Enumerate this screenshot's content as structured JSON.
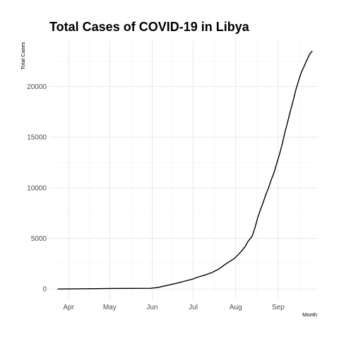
{
  "chart_data": {
    "type": "line",
    "title": "Total Cases of COVID-19 in Libya",
    "xlabel": "Month",
    "ylabel": "Total Cases",
    "x_tick_labels": [
      "Apr",
      "May",
      "Jun",
      "Jul",
      "Aug",
      "Sep"
    ],
    "x_tick_dates": [
      "2020-04-01",
      "2020-05-01",
      "2020-06-01",
      "2020-07-01",
      "2020-08-01",
      "2020-09-01"
    ],
    "y_ticks": [
      0,
      5000,
      10000,
      15000,
      20000
    ],
    "xlim": [
      "2020-03-18",
      "2020-09-30"
    ],
    "ylim": [
      -1100,
      24500
    ],
    "grid": true,
    "x": [
      "2020-03-24",
      "2020-04-15",
      "2020-05-01",
      "2020-05-15",
      "2020-05-31",
      "2020-06-05",
      "2020-06-10",
      "2020-06-15",
      "2020-06-20",
      "2020-06-25",
      "2020-07-01",
      "2020-07-05",
      "2020-07-10",
      "2020-07-15",
      "2020-07-20",
      "2020-07-25",
      "2020-07-31",
      "2020-08-05",
      "2020-08-08",
      "2020-08-10",
      "2020-08-13",
      "2020-08-15",
      "2020-08-17",
      "2020-08-19",
      "2020-08-21",
      "2020-08-23",
      "2020-08-25",
      "2020-08-27",
      "2020-08-29",
      "2020-08-31",
      "2020-09-02",
      "2020-09-04",
      "2020-09-06",
      "2020-09-08",
      "2020-09-10",
      "2020-09-12",
      "2020-09-14",
      "2020-09-16",
      "2020-09-18",
      "2020-09-20",
      "2020-09-22",
      "2020-09-24",
      "2020-09-26"
    ],
    "series": [
      {
        "values": [
          1,
          30,
          61,
          64,
          75,
          150,
          300,
          450,
          600,
          780,
          1000,
          1200,
          1400,
          1650,
          2000,
          2500,
          3000,
          3700,
          4200,
          4700,
          5200,
          6000,
          7000,
          7800,
          8500,
          9300,
          10000,
          10800,
          11500,
          12400,
          13300,
          14300,
          15500,
          16500,
          17600,
          18600,
          19700,
          20600,
          21400,
          22000,
          22600,
          23200,
          23500
        ]
      }
    ]
  }
}
